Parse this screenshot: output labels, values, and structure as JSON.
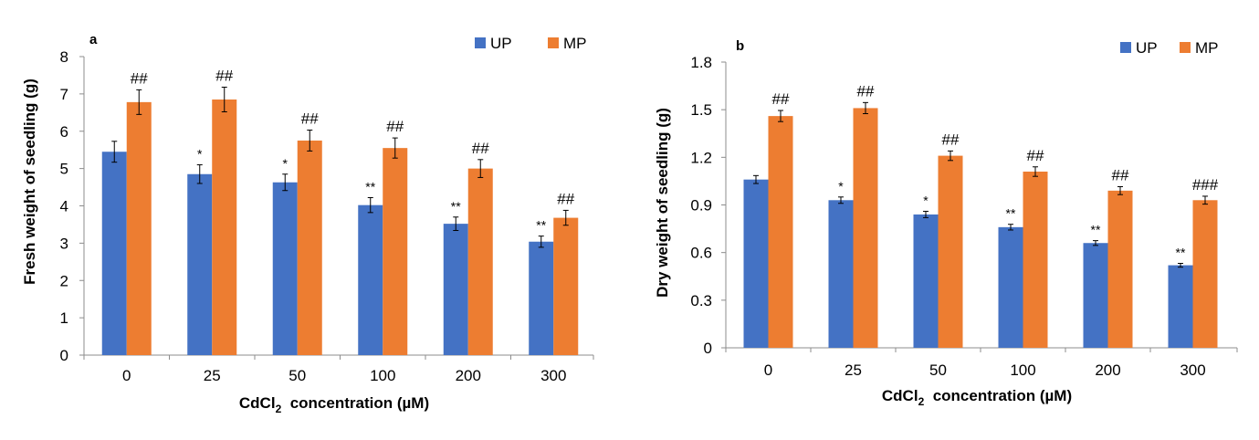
{
  "colors": {
    "UP": "#4472C4",
    "MP": "#ED7D31",
    "axis": "#8c8c8c",
    "error": "#000000"
  },
  "legend": [
    "UP",
    "MP"
  ],
  "chart_data": [
    {
      "type": "bar",
      "panel_label": "a",
      "categories": [
        "0",
        "25",
        "50",
        "100",
        "200",
        "300"
      ],
      "xlabel": "CdCl",
      "xlabel_sub": "2",
      "xlabel_rest": "  concentration (µM)",
      "ylabel": "Fresh weight of seedling (g)",
      "ylim": [
        0,
        8
      ],
      "yticks": [
        "0",
        "1",
        "2",
        "3",
        "4",
        "5",
        "6",
        "7",
        "8"
      ],
      "grid": false,
      "legend_position": "top-right",
      "series": [
        {
          "name": "UP",
          "values": [
            5.45,
            4.85,
            4.63,
            4.02,
            3.52,
            3.04
          ],
          "errors": [
            0.28,
            0.25,
            0.22,
            0.2,
            0.18,
            0.15
          ],
          "labels": [
            "",
            "*",
            "*",
            "**",
            "**",
            "**"
          ]
        },
        {
          "name": "MP",
          "values": [
            6.78,
            6.85,
            5.75,
            5.55,
            5.0,
            3.68
          ],
          "errors": [
            0.33,
            0.33,
            0.28,
            0.27,
            0.24,
            0.2
          ],
          "labels": [
            "##",
            "##",
            "##",
            "##",
            "##",
            "##"
          ]
        }
      ]
    },
    {
      "type": "bar",
      "panel_label": "b",
      "categories": [
        "0",
        "25",
        "50",
        "100",
        "200",
        "300"
      ],
      "xlabel": "CdCl",
      "xlabel_sub": "2",
      "xlabel_rest": "  concentration (µM)",
      "ylabel": "Dry  weight of seedling (g)",
      "ylim": [
        0,
        1.8
      ],
      "yticks": [
        "0",
        "0.3",
        "0.6",
        "0.9",
        "1.2",
        "1.5",
        "1.8"
      ],
      "grid": false,
      "legend_position": "top-right",
      "series": [
        {
          "name": "UP",
          "values": [
            1.06,
            0.93,
            0.84,
            0.76,
            0.66,
            0.52
          ],
          "errors": [
            0.025,
            0.02,
            0.02,
            0.018,
            0.015,
            0.012
          ],
          "labels": [
            "",
            "*",
            "*",
            "**",
            "**",
            "**"
          ]
        },
        {
          "name": "MP",
          "values": [
            1.46,
            1.51,
            1.21,
            1.11,
            0.99,
            0.93
          ],
          "errors": [
            0.035,
            0.035,
            0.03,
            0.03,
            0.025,
            0.025
          ],
          "labels": [
            "##",
            "##",
            "##",
            "##",
            "##",
            "###"
          ]
        }
      ]
    }
  ]
}
